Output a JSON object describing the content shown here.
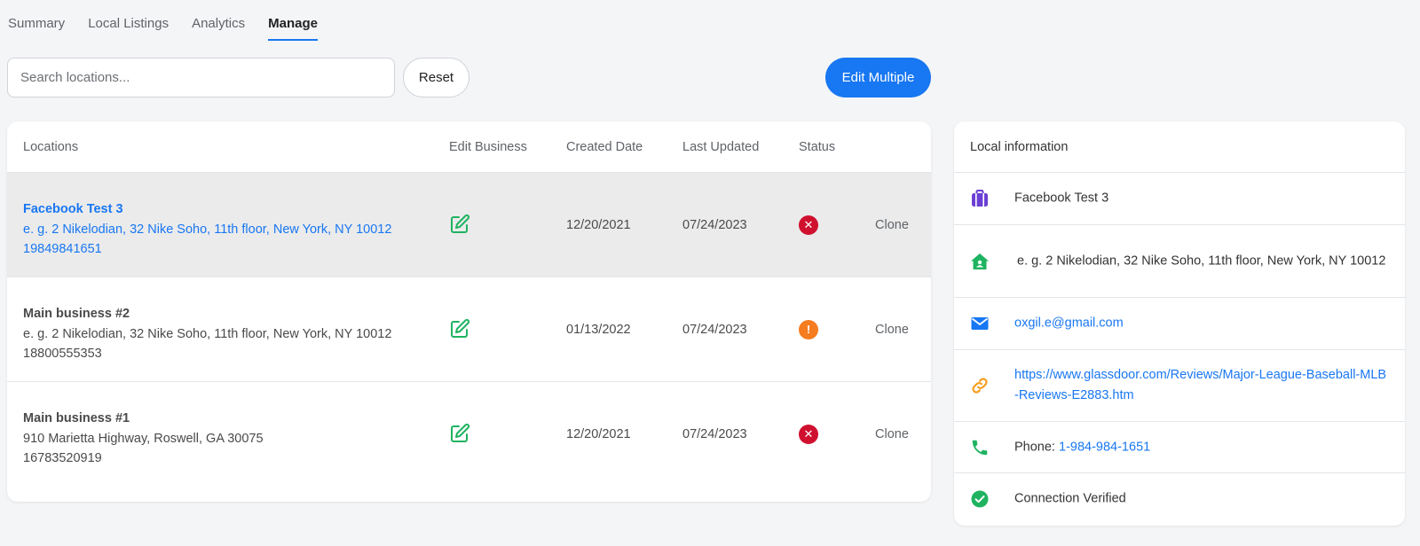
{
  "tabs": [
    {
      "label": "Summary",
      "active": false
    },
    {
      "label": "Local Listings",
      "active": false
    },
    {
      "label": "Analytics",
      "active": false
    },
    {
      "label": "Manage",
      "active": true
    }
  ],
  "toolbar": {
    "search_placeholder": "Search locations...",
    "search_value": "",
    "reset_label": "Reset",
    "edit_multiple_label": "Edit Multiple"
  },
  "table": {
    "headers": {
      "locations": "Locations",
      "edit_business": "Edit Business",
      "created_date": "Created Date",
      "last_updated": "Last Updated",
      "status": "Status"
    },
    "rows": [
      {
        "name": "Facebook Test 3",
        "address": "e. g. 2 Nikelodian, 32 Nike Soho, 11th floor, New York, NY 10012",
        "phone": "19849841651",
        "created": "12/20/2021",
        "updated": "07/24/2023",
        "status": "error",
        "status_glyph": "✕",
        "action": "Clone",
        "selected": true
      },
      {
        "name": "Main business #2",
        "address": "e. g. 2 Nikelodian, 32 Nike Soho, 11th floor, New York, NY 10012",
        "phone": "18800555353",
        "created": "01/13/2022",
        "updated": "07/24/2023",
        "status": "warning",
        "status_glyph": "!",
        "action": "Clone",
        "selected": false
      },
      {
        "name": "Main business #1",
        "address": "910 Marietta Highway, Roswell, GA 30075",
        "phone": "16783520919",
        "created": "12/20/2021",
        "updated": "07/24/2023",
        "status": "error",
        "status_glyph": "✕",
        "action": "Clone",
        "selected": false
      }
    ]
  },
  "local_info": {
    "title": "Local information",
    "business_name": "Facebook Test 3",
    "address": "e. g. 2 Nikelodian, 32 Nike Soho, 11th floor, New York, NY 10012",
    "email": "oxgil.e@gmail.com",
    "website": "https://www.glassdoor.com/Reviews/Major-League-Baseball-MLB-Reviews-E2883.htm",
    "phone_label": "Phone: ",
    "phone": "1-984-984-1651",
    "connection": "Connection Verified"
  },
  "colors": {
    "accent": "#1877f2",
    "edit_icon": "#1fb361",
    "status_error": "#d0102f",
    "status_warning": "#f57c1f",
    "briefcase_icon": "#6a3fd4",
    "home_icon": "#1fb361",
    "mail_icon": "#1877f2",
    "link_icon": "#f59f1f",
    "phone_icon": "#1fb361",
    "verified_icon": "#1fb361"
  }
}
